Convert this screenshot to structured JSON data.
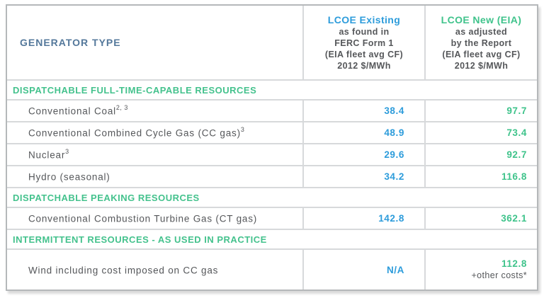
{
  "table": {
    "generator_type_header": "GENERATOR TYPE",
    "value_columns": [
      {
        "title": "LCOE Existing",
        "subtitle": [
          "as found in",
          "FERC Form 1",
          "(EIA fleet avg CF)",
          "2012 $/MWh"
        ]
      },
      {
        "title": "LCOE New (EIA)",
        "subtitle": [
          "as adjusted",
          "by the Report",
          "(EIA fleet avg CF)",
          "2012 $/MWh"
        ]
      }
    ],
    "sections": [
      {
        "header": "DISPATCHABLE FULL-TIME-CAPABLE RESOURCES",
        "rows": [
          {
            "label": "Conventional Coal",
            "superscript": "2, 3",
            "existing": "38.4",
            "new": "97.7"
          },
          {
            "label": "Conventional Combined Cycle Gas (CC gas)",
            "superscript": "3",
            "existing": "48.9",
            "new": "73.4"
          },
          {
            "label": "Nuclear",
            "superscript": "3",
            "existing": "29.6",
            "new": "92.7"
          },
          {
            "label": "Hydro (seasonal)",
            "superscript": "",
            "existing": "34.2",
            "new": "116.8"
          }
        ]
      },
      {
        "header": "DISPATCHABLE PEAKING RESOURCES",
        "rows": [
          {
            "label": "Conventional Combustion Turbine Gas (CT gas)",
            "superscript": "",
            "existing": "142.8",
            "new": "362.1"
          }
        ]
      },
      {
        "header": "INTERMITTENT RESOURCES - AS USED IN PRACTICE",
        "rows": [
          {
            "label": "Wind including cost imposed on CC gas",
            "superscript": "",
            "existing": "N/A",
            "new": "112.8",
            "new_note": "+other costs*"
          }
        ]
      }
    ],
    "colors": {
      "existing_accent": "#2d9cdb",
      "new_accent": "#3fc38b",
      "section_header_green": "#44c28d",
      "generator_header_blue": "#54789b",
      "body_text": "#55575a",
      "inner_border": "#d7d9db",
      "outer_border": "#b5b8ba"
    }
  },
  "chart_data": {
    "type": "table",
    "title": "",
    "columns": [
      "GENERATOR TYPE",
      "LCOE Existing as found in FERC Form 1 (EIA fleet avg CF) 2012 $/MWh",
      "LCOE New (EIA) as adjusted by the Report (EIA fleet avg CF) 2012 $/MWh"
    ],
    "sections": [
      {
        "header": "DISPATCHABLE FULL-TIME-CAPABLE RESOURCES",
        "rows": [
          [
            "Conventional Coal (2, 3)",
            38.4,
            97.7
          ],
          [
            "Conventional Combined Cycle Gas (CC gas) (3)",
            48.9,
            73.4
          ],
          [
            "Nuclear (3)",
            29.6,
            92.7
          ],
          [
            "Hydro (seasonal)",
            34.2,
            116.8
          ]
        ]
      },
      {
        "header": "DISPATCHABLE PEAKING RESOURCES",
        "rows": [
          [
            "Conventional Combustion Turbine Gas (CT gas)",
            142.8,
            362.1
          ]
        ]
      },
      {
        "header": "INTERMITTENT RESOURCES - AS USED IN PRACTICE",
        "rows": [
          [
            "Wind including cost imposed on CC gas",
            "N/A",
            "112.8 +other costs*"
          ]
        ]
      }
    ]
  }
}
